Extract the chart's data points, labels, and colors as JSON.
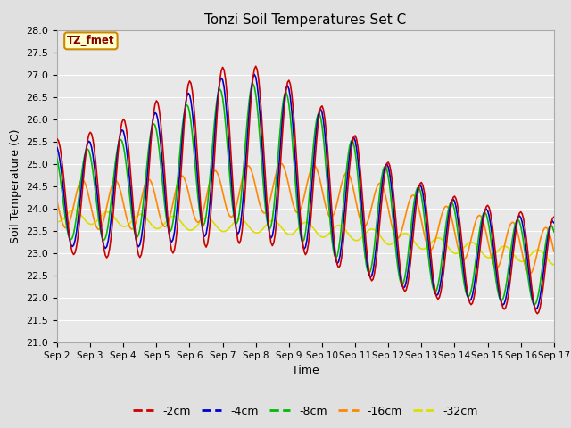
{
  "title": "Tonzi Soil Temperatures Set C",
  "xlabel": "Time",
  "ylabel": "Soil Temperature (C)",
  "ylim": [
    21.0,
    28.0
  ],
  "yticks": [
    21.0,
    21.5,
    22.0,
    22.5,
    23.0,
    23.5,
    24.0,
    24.5,
    25.0,
    25.5,
    26.0,
    26.5,
    27.0,
    27.5,
    28.0
  ],
  "xtick_labels": [
    "Sep 2",
    "Sep 3",
    "Sep 4",
    "Sep 5",
    "Sep 6",
    "Sep 7",
    "Sep 8",
    "Sep 9",
    "Sep 10",
    "Sep 11",
    "Sep 12",
    "Sep 13",
    "Sep 14",
    "Sep 15",
    "Sep 16",
    "Sep 17"
  ],
  "colors": {
    "-2cm": "#cc0000",
    "-4cm": "#0000cc",
    "-8cm": "#00bb00",
    "-16cm": "#ff8800",
    "-32cm": "#dddd00"
  },
  "legend_label": "TZ_fmet",
  "legend_bg": "#ffffcc",
  "legend_border": "#cc8800",
  "fig_bg": "#e0e0e0",
  "plot_bg": "#e8e8e8",
  "linewidth": 1.2,
  "n_days": 15,
  "hours_per_day": 24
}
